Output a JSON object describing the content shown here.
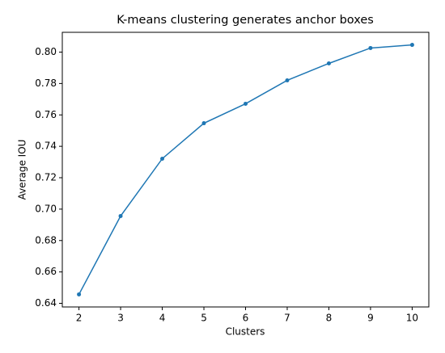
{
  "chart_data": {
    "type": "line",
    "title": "K-means clustering generates anchor boxes",
    "x_label": "Clusters",
    "y_label": "Average IOU",
    "x": [
      2,
      3,
      4,
      5,
      6,
      7,
      8,
      9,
      10
    ],
    "series": [
      {
        "color": "#1f77b4",
        "values": [
          0.6457,
          0.6956,
          0.7321,
          0.7547,
          0.7671,
          0.782,
          0.7928,
          0.8026,
          0.8046
        ]
      }
    ],
    "xlim": [
      1.6,
      10.4
    ],
    "xticks": [
      2,
      3,
      4,
      5,
      6,
      7,
      8,
      9,
      10
    ],
    "ylim": [
      0.6377,
      0.8126
    ],
    "yticks": [
      0.64,
      0.66,
      0.68,
      {
        "value": 0.7,
        "label": "0.70"
      },
      0.72,
      0.74,
      0.76,
      0.78,
      {
        "value": 0.8,
        "label": "0.80"
      }
    ],
    "grid": false
  }
}
